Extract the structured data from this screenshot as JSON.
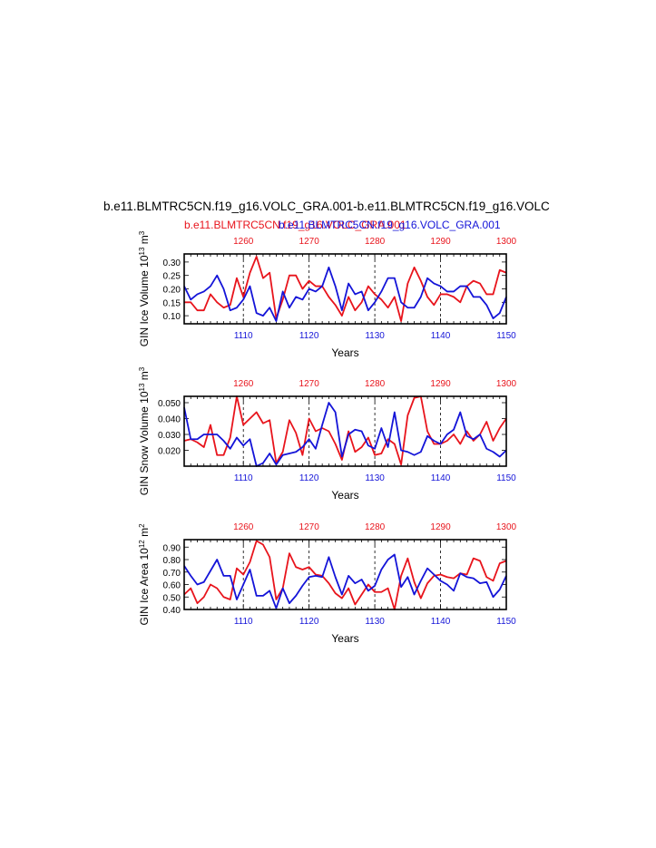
{
  "figure": {
    "title": "b.e11.BLMTRC5CN.f19_g16.VOLC_GRA.001-b.e11.BLMTRC5CN.f19_g16.VOLC",
    "legend_red": "b.e11.BLMTRC5CN.f19_g16.VOLC_GRA.001",
    "legend_blue": "b.e11.BLMTRC5CN.f19_g16.VOLC_GRA.001",
    "colors": {
      "red": "#e8141c",
      "blue": "#1414d8"
    }
  },
  "chart_data": [
    {
      "type": "line",
      "ylabel_main": "GIN Ice Volume 10",
      "ylabel_exp": "13",
      "ylabel_unit": " m",
      "ylabel_unit_exp": "3",
      "xlabel": "Years",
      "ylim": [
        0.07,
        0.33
      ],
      "yticks": [
        0.1,
        0.15,
        0.2,
        0.25,
        0.3
      ],
      "ytick_labels": [
        "0.10",
        "0.15",
        "0.20",
        "0.25",
        "0.30"
      ],
      "x_bottom": {
        "range": [
          1101,
          1150
        ],
        "ticks": [
          1110,
          1120,
          1130,
          1140,
          1150
        ]
      },
      "x_top": {
        "range": [
          1251,
          1300
        ],
        "ticks": [
          1260,
          1270,
          1280,
          1290,
          1300
        ]
      },
      "grid_x": [
        1110,
        1120,
        1130,
        1140
      ],
      "series": [
        {
          "color": "red",
          "values": [
            0.15,
            0.15,
            0.12,
            0.12,
            0.18,
            0.15,
            0.13,
            0.14,
            0.24,
            0.17,
            0.26,
            0.32,
            0.24,
            0.26,
            0.09,
            0.16,
            0.25,
            0.25,
            0.2,
            0.23,
            0.21,
            0.21,
            0.17,
            0.14,
            0.1,
            0.17,
            0.12,
            0.15,
            0.21,
            0.18,
            0.16,
            0.13,
            0.17,
            0.08,
            0.22,
            0.28,
            0.23,
            0.17,
            0.14,
            0.18,
            0.18,
            0.17,
            0.15,
            0.21,
            0.23,
            0.22,
            0.18,
            0.18,
            0.27,
            0.26
          ]
        },
        {
          "color": "blue",
          "values": [
            0.21,
            0.16,
            0.18,
            0.19,
            0.21,
            0.25,
            0.2,
            0.12,
            0.13,
            0.16,
            0.21,
            0.11,
            0.1,
            0.13,
            0.08,
            0.19,
            0.13,
            0.17,
            0.16,
            0.2,
            0.19,
            0.21,
            0.28,
            0.21,
            0.12,
            0.22,
            0.18,
            0.19,
            0.12,
            0.15,
            0.19,
            0.24,
            0.24,
            0.15,
            0.13,
            0.13,
            0.17,
            0.24,
            0.22,
            0.21,
            0.19,
            0.19,
            0.21,
            0.21,
            0.17,
            0.17,
            0.14,
            0.09,
            0.11,
            0.17
          ]
        }
      ]
    },
    {
      "type": "line",
      "ylabel_main": "GIN Snow Volume 10",
      "ylabel_exp": "13",
      "ylabel_unit": " m",
      "ylabel_unit_exp": "3",
      "xlabel": "Years",
      "ylim": [
        0.01,
        0.054
      ],
      "yticks": [
        0.02,
        0.03,
        0.04,
        0.05
      ],
      "ytick_labels": [
        "0.020",
        "0.030",
        "0.040",
        "0.050"
      ],
      "x_bottom": {
        "range": [
          1101,
          1150
        ],
        "ticks": [
          1110,
          1120,
          1130,
          1140,
          1150
        ]
      },
      "x_top": {
        "range": [
          1251,
          1300
        ],
        "ticks": [
          1260,
          1270,
          1280,
          1290,
          1300
        ]
      },
      "grid_x": [
        1110,
        1120,
        1130,
        1140
      ],
      "series": [
        {
          "color": "red",
          "values": [
            0.026,
            0.027,
            0.025,
            0.022,
            0.036,
            0.017,
            0.017,
            0.028,
            0.054,
            0.036,
            0.04,
            0.044,
            0.037,
            0.039,
            0.012,
            0.019,
            0.039,
            0.031,
            0.017,
            0.04,
            0.032,
            0.034,
            0.032,
            0.024,
            0.014,
            0.032,
            0.019,
            0.022,
            0.028,
            0.017,
            0.018,
            0.027,
            0.024,
            0.011,
            0.042,
            0.053,
            0.054,
            0.032,
            0.024,
            0.024,
            0.026,
            0.03,
            0.024,
            0.032,
            0.026,
            0.03,
            0.038,
            0.026,
            0.034,
            0.04
          ]
        },
        {
          "color": "blue",
          "values": [
            0.047,
            0.027,
            0.027,
            0.03,
            0.03,
            0.03,
            0.026,
            0.021,
            0.028,
            0.023,
            0.027,
            0.01,
            0.012,
            0.018,
            0.011,
            0.017,
            0.018,
            0.019,
            0.022,
            0.027,
            0.021,
            0.036,
            0.05,
            0.044,
            0.016,
            0.03,
            0.033,
            0.032,
            0.023,
            0.021,
            0.034,
            0.022,
            0.044,
            0.02,
            0.019,
            0.017,
            0.019,
            0.029,
            0.026,
            0.024,
            0.03,
            0.033,
            0.044,
            0.029,
            0.027,
            0.03,
            0.021,
            0.019,
            0.016,
            0.02
          ]
        }
      ]
    },
    {
      "type": "line",
      "ylabel_main": "GIN Ice Area 10",
      "ylabel_exp": "12",
      "ylabel_unit": " m",
      "ylabel_unit_exp": "2",
      "xlabel": "Years",
      "ylim": [
        0.4,
        0.96
      ],
      "yticks": [
        0.4,
        0.5,
        0.6,
        0.7,
        0.8,
        0.9
      ],
      "ytick_labels": [
        "0.40",
        "0.50",
        "0.60",
        "0.70",
        "0.80",
        "0.90"
      ],
      "x_bottom": {
        "range": [
          1101,
          1150
        ],
        "ticks": [
          1110,
          1120,
          1130,
          1140,
          1150
        ]
      },
      "x_top": {
        "range": [
          1251,
          1300
        ],
        "ticks": [
          1260,
          1270,
          1280,
          1290,
          1300
        ]
      },
      "grid_x": [
        1110,
        1120,
        1130,
        1140
      ],
      "series": [
        {
          "color": "red",
          "values": [
            0.52,
            0.57,
            0.45,
            0.5,
            0.6,
            0.57,
            0.5,
            0.48,
            0.73,
            0.68,
            0.78,
            0.95,
            0.92,
            0.82,
            0.48,
            0.57,
            0.85,
            0.74,
            0.72,
            0.74,
            0.68,
            0.67,
            0.61,
            0.53,
            0.49,
            0.57,
            0.44,
            0.52,
            0.6,
            0.54,
            0.54,
            0.57,
            0.4,
            0.67,
            0.81,
            0.62,
            0.49,
            0.61,
            0.67,
            0.68,
            0.66,
            0.65,
            0.69,
            0.68,
            0.81,
            0.79,
            0.66,
            0.63,
            0.77,
            0.79
          ]
        },
        {
          "color": "blue",
          "values": [
            0.75,
            0.67,
            0.6,
            0.62,
            0.71,
            0.8,
            0.67,
            0.67,
            0.48,
            0.6,
            0.72,
            0.51,
            0.51,
            0.55,
            0.41,
            0.57,
            0.45,
            0.51,
            0.59,
            0.66,
            0.67,
            0.66,
            0.82,
            0.66,
            0.52,
            0.67,
            0.61,
            0.64,
            0.55,
            0.59,
            0.72,
            0.8,
            0.84,
            0.58,
            0.66,
            0.52,
            0.63,
            0.73,
            0.68,
            0.63,
            0.6,
            0.55,
            0.69,
            0.66,
            0.65,
            0.61,
            0.62,
            0.5,
            0.56,
            0.67
          ]
        }
      ]
    }
  ]
}
